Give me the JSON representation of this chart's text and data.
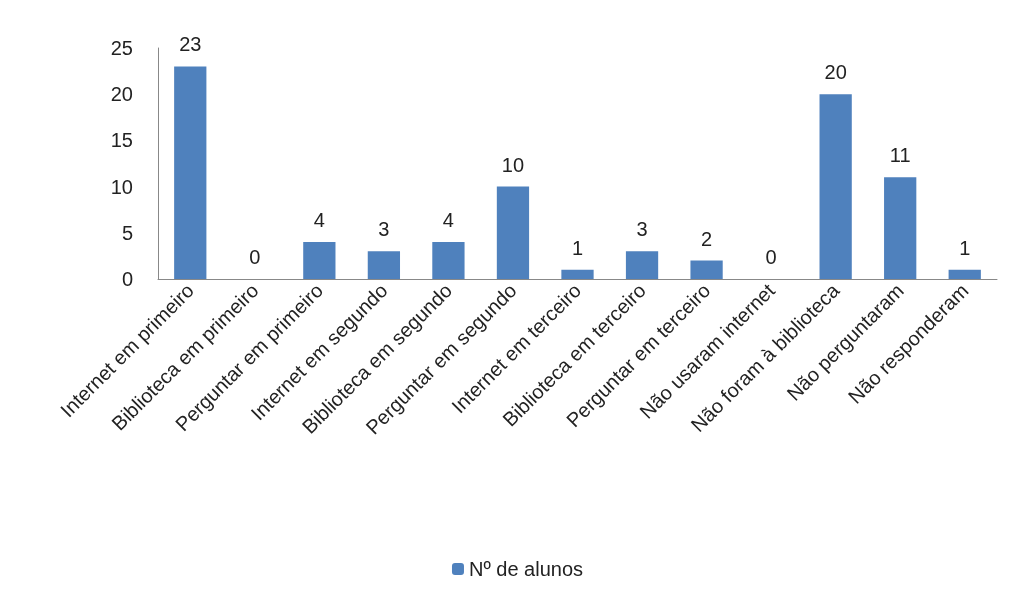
{
  "chart_data": {
    "type": "bar",
    "categories": [
      "Internet em primeiro",
      "Biblioteca em primeiro",
      "Perguntar em primeiro",
      "Internet em segundo",
      "Biblioteca em segundo",
      "Perguntar em segundo",
      "Internet em terceiro",
      "Biblioteca em terceiro",
      "Perguntar em terceiro",
      "Não usaram internet",
      "Não foram à biblioteca",
      "Não perguntaram",
      "Não responderam"
    ],
    "series": [
      {
        "name": "Nº de alunos",
        "color": "#4f81bd",
        "values": [
          23,
          0,
          4,
          3,
          4,
          10,
          1,
          3,
          2,
          0,
          20,
          11,
          1
        ]
      }
    ],
    "ylim": [
      0,
      25
    ],
    "yticks": [
      0,
      5,
      10,
      15,
      20,
      25
    ],
    "grid": false,
    "legend": "bottom",
    "data_labels": true
  }
}
